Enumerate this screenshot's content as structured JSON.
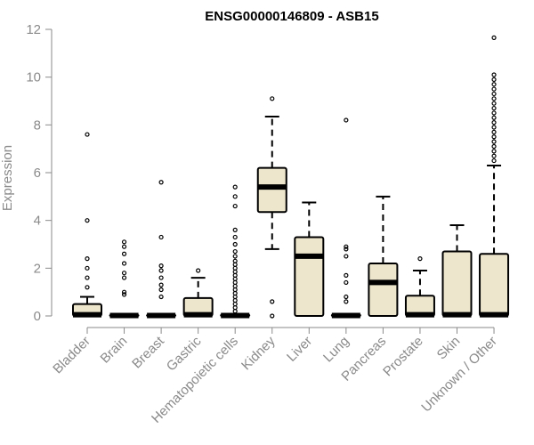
{
  "chart_data": {
    "type": "boxplot",
    "title": "ENSG00000146809 - ASB15",
    "xlabel": "",
    "ylabel": "Expression",
    "ylim": [
      0,
      12
    ],
    "yticks": [
      0,
      2,
      4,
      6,
      8,
      10,
      12
    ],
    "box_fill": "#ede6cc",
    "box_stroke": "#000000",
    "axis_color": "#8a8a8a",
    "categories": [
      "Bladder",
      "Brain",
      "Breast",
      "Gastric",
      "Hematopoietic cells",
      "Kidney",
      "Liver",
      "Lung",
      "Pancreas",
      "Prostate",
      "Skin",
      "Unknown / Other"
    ],
    "boxes": [
      {
        "q1": 0,
        "median": 0.05,
        "q3": 0.5,
        "whisker_low": 0,
        "whisker_high": 0.8,
        "outliers": [
          1.2,
          1.6,
          2.0,
          2.4,
          4.0,
          7.6
        ]
      },
      {
        "q1": 0,
        "median": 0.02,
        "q3": 0.04,
        "whisker_low": 0,
        "whisker_high": 0.06,
        "outliers": [
          0.9,
          1.0,
          1.6,
          1.8,
          2.2,
          2.6,
          2.9,
          3.1
        ]
      },
      {
        "q1": 0,
        "median": 0.02,
        "q3": 0.04,
        "whisker_low": 0,
        "whisker_high": 0.06,
        "outliers": [
          0.8,
          1.1,
          1.3,
          1.6,
          1.9,
          2.1,
          3.3,
          5.6
        ]
      },
      {
        "q1": 0,
        "median": 0.05,
        "q3": 0.75,
        "whisker_low": 0,
        "whisker_high": 1.6,
        "outliers": [
          1.9
        ]
      },
      {
        "q1": 0,
        "median": 0.02,
        "q3": 0.05,
        "whisker_low": 0,
        "whisker_high": 0.08,
        "outliers": [
          0.2,
          0.35,
          0.5,
          0.65,
          0.8,
          0.95,
          1.1,
          1.25,
          1.4,
          1.55,
          1.7,
          1.85,
          2.0,
          2.15,
          2.3,
          2.5,
          2.7,
          3.0,
          3.3,
          3.6,
          4.6,
          5.0,
          5.4
        ]
      },
      {
        "q1": 4.35,
        "median": 5.4,
        "q3": 6.2,
        "whisker_low": 2.8,
        "whisker_high": 8.35,
        "outliers": [
          0,
          0.6,
          9.1
        ]
      },
      {
        "q1": 0,
        "median": 2.5,
        "q3": 3.3,
        "whisker_low": 0,
        "whisker_high": 4.75,
        "outliers": []
      },
      {
        "q1": 0,
        "median": 0.02,
        "q3": 0.05,
        "whisker_low": 0,
        "whisker_high": 0.08,
        "outliers": [
          0.6,
          0.8,
          1.4,
          1.7,
          2.5,
          2.8,
          2.9,
          8.2
        ]
      },
      {
        "q1": 0,
        "median": 1.4,
        "q3": 2.2,
        "whisker_low": 0,
        "whisker_high": 5.0,
        "outliers": []
      },
      {
        "q1": 0,
        "median": 0.05,
        "q3": 0.85,
        "whisker_low": 0,
        "whisker_high": 1.9,
        "outliers": [
          2.4
        ]
      },
      {
        "q1": 0,
        "median": 0.05,
        "q3": 2.7,
        "whisker_low": 0,
        "whisker_high": 3.8,
        "outliers": []
      },
      {
        "q1": 0,
        "median": 0.05,
        "q3": 2.6,
        "whisker_low": 0,
        "whisker_high": 6.3,
        "outliers": [
          6.5,
          6.7,
          6.9,
          7.1,
          7.3,
          7.5,
          7.7,
          7.9,
          8.1,
          8.3,
          8.5,
          8.7,
          8.9,
          9.1,
          9.3,
          9.5,
          9.7,
          9.9,
          10.1,
          11.65
        ]
      }
    ]
  }
}
